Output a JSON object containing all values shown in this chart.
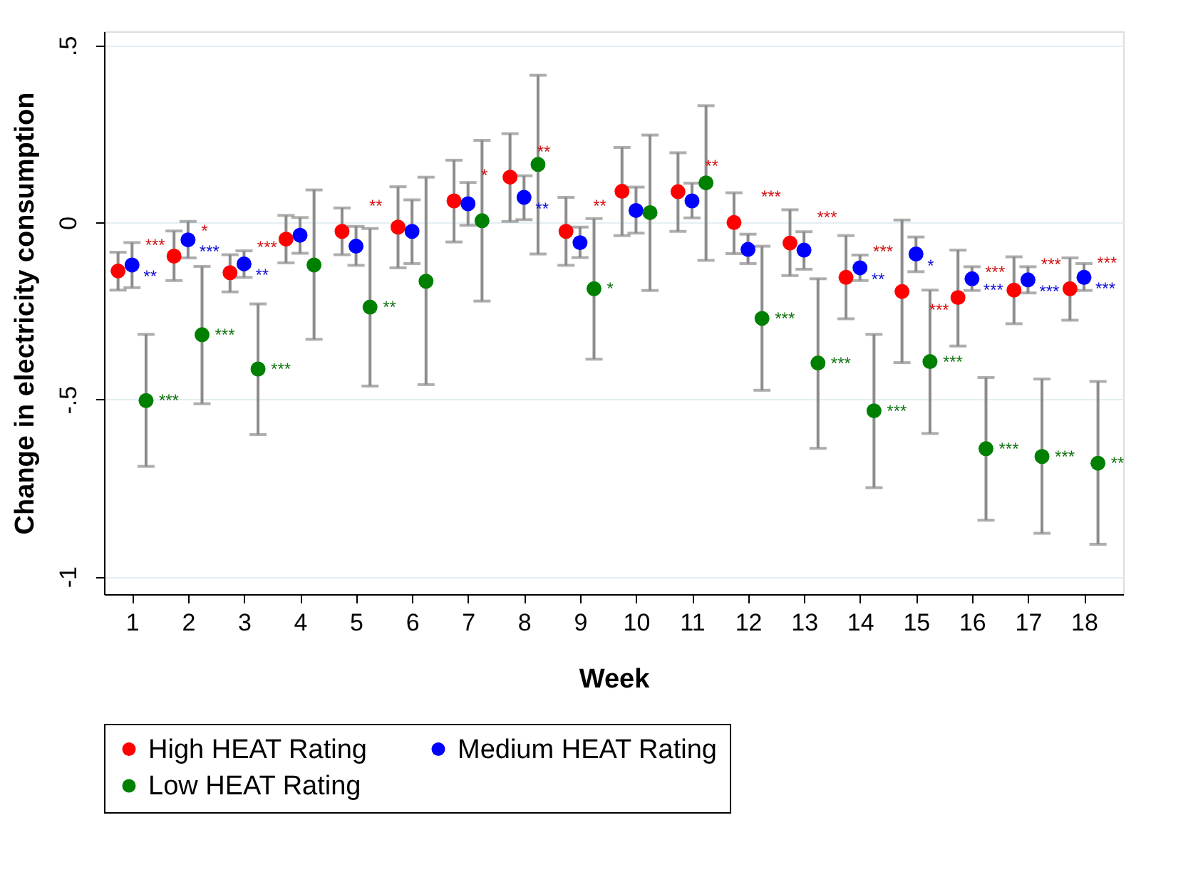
{
  "chart_data": {
    "type": "scatter",
    "xlabel": "Week",
    "ylabel": "Change in electricity consumption",
    "xlim": [
      0.5,
      18.7
    ],
    "xticks": [
      1,
      2,
      3,
      4,
      5,
      6,
      7,
      8,
      9,
      10,
      11,
      12,
      13,
      14,
      15,
      16,
      17,
      18
    ],
    "ylim": [
      -1.05,
      0.54
    ],
    "yticks": [
      {
        "value": -1,
        "label": "-1"
      },
      {
        "value": -0.5,
        "label": "-.5"
      },
      {
        "value": 0,
        "label": "0"
      },
      {
        "value": 0.5,
        "label": ".5"
      }
    ],
    "grid": "y",
    "legend": "bottom",
    "marker": "circle",
    "series": [
      {
        "name": "High HEAT Rating",
        "color": "#ff0000",
        "x": [
          0.75,
          1.75,
          2.75,
          3.75,
          4.75,
          5.75,
          6.75,
          7.75,
          8.75,
          9.75,
          10.75,
          11.75,
          12.75,
          13.75,
          14.75,
          15.75,
          16.75,
          17.75
        ],
        "values": [
          -0.137,
          -0.095,
          -0.142,
          -0.047,
          -0.025,
          -0.013,
          0.061,
          0.128,
          -0.025,
          0.088,
          0.087,
          0,
          -0.058,
          -0.155,
          -0.195,
          -0.212,
          -0.191,
          -0.187
        ],
        "errors": [
          [
            -0.191,
            -0.084
          ],
          [
            -0.164,
            -0.024
          ],
          [
            -0.196,
            -0.091
          ],
          [
            -0.114,
            0.02
          ],
          [
            -0.091,
            0.041
          ],
          [
            -0.128,
            0.101
          ],
          [
            -0.055,
            0.176
          ],
          [
            0.003,
            0.251
          ],
          [
            -0.121,
            0.071
          ],
          [
            -0.037,
            0.212
          ],
          [
            -0.025,
            0.197
          ],
          [
            -0.088,
            0.084
          ],
          [
            -0.15,
            0.036
          ],
          [
            -0.272,
            -0.037
          ],
          [
            -0.396,
            0.007
          ],
          [
            -0.349,
            -0.078
          ],
          [
            -0.286,
            -0.097
          ],
          [
            -0.276,
            -0.1
          ]
        ],
        "value_labels": [
          "***",
          "*",
          "***",
          null,
          "**",
          null,
          "*",
          "**",
          "**",
          null,
          "**",
          "***",
          "***",
          "***",
          "***",
          "***",
          "***",
          "***"
        ]
      },
      {
        "name": "Medium HEAT Rating",
        "color": "#0000ff",
        "x": [
          1,
          2,
          3,
          4,
          5,
          6,
          7,
          8,
          9,
          10,
          11,
          12,
          13,
          14,
          15,
          16,
          17,
          18
        ],
        "values": [
          -0.12,
          -0.049,
          -0.117,
          -0.036,
          -0.067,
          -0.025,
          0.053,
          0.071,
          -0.057,
          0.034,
          0.061,
          -0.076,
          -0.078,
          -0.128,
          -0.089,
          -0.159,
          -0.162,
          -0.155
        ],
        "errors": [
          [
            -0.184,
            -0.057
          ],
          [
            -0.1,
            0.003
          ],
          [
            -0.155,
            -0.08
          ],
          [
            -0.087,
            0.014
          ],
          [
            -0.121,
            -0.011
          ],
          [
            -0.116,
            0.064
          ],
          [
            -0.008,
            0.113
          ],
          [
            0.008,
            0.132
          ],
          [
            -0.099,
            -0.013
          ],
          [
            -0.03,
            0.1
          ],
          [
            0.013,
            0.111
          ],
          [
            -0.116,
            -0.033
          ],
          [
            -0.132,
            -0.026
          ],
          [
            -0.164,
            -0.092
          ],
          [
            -0.139,
            -0.041
          ],
          [
            -0.192,
            -0.125
          ],
          [
            -0.199,
            -0.125
          ],
          [
            -0.192,
            -0.116
          ]
        ],
        "value_labels": [
          "**",
          "***",
          "**",
          null,
          null,
          null,
          null,
          "**",
          null,
          null,
          null,
          null,
          null,
          "**",
          "*",
          "***",
          "***",
          "***"
        ]
      },
      {
        "name": "Low HEAT Rating",
        "color": "#008000",
        "x": [
          1.25,
          2.25,
          3.25,
          4.25,
          5.25,
          6.25,
          7.25,
          8.25,
          9.25,
          10.25,
          11.25,
          12.25,
          13.25,
          14.25,
          15.25,
          16.25,
          17.25,
          18.25
        ],
        "values": [
          -0.503,
          -0.317,
          -0.414,
          -0.12,
          -0.239,
          -0.166,
          0.005,
          0.164,
          -0.187,
          0.028,
          0.112,
          -0.271,
          -0.397,
          -0.532,
          -0.393,
          -0.639,
          -0.661,
          -0.68
        ],
        "errors": [
          [
            -0.689,
            -0.316
          ],
          [
            -0.512,
            -0.124
          ],
          [
            -0.599,
            -0.23
          ],
          [
            -0.33,
            0.092
          ],
          [
            -0.462,
            -0.017
          ],
          [
            -0.458,
            0.128
          ],
          [
            -0.222,
            0.232
          ],
          [
            -0.089,
            0.416
          ],
          [
            -0.386,
            0.011
          ],
          [
            -0.192,
            0.247
          ],
          [
            -0.107,
            0.33
          ],
          [
            -0.474,
            -0.067
          ],
          [
            -0.638,
            -0.159
          ],
          [
            -0.749,
            -0.316
          ],
          [
            -0.596,
            -0.191
          ],
          [
            -0.841,
            -0.438
          ],
          [
            -0.878,
            -0.442
          ],
          [
            -0.909,
            -0.449
          ]
        ],
        "value_labels": [
          "***",
          "***",
          "***",
          null,
          "**",
          null,
          null,
          null,
          "*",
          null,
          null,
          "***",
          "***",
          "***",
          "***",
          "***",
          "***",
          "**"
        ]
      }
    ]
  }
}
